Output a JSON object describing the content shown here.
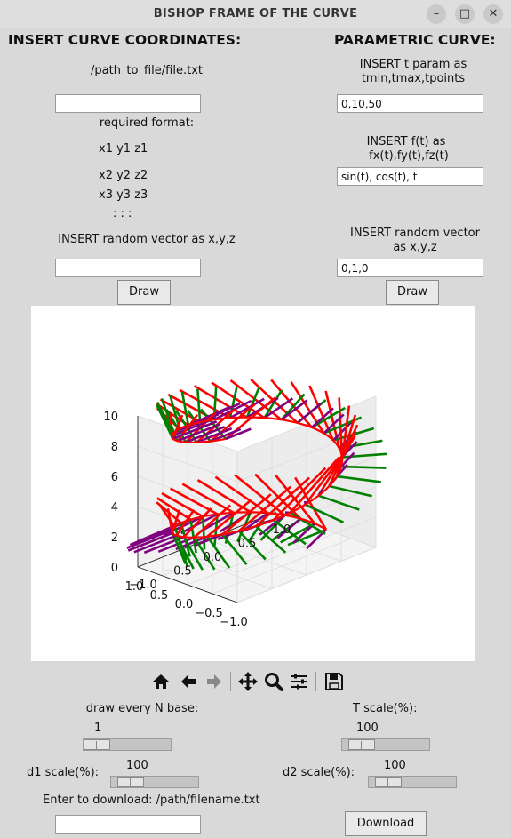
{
  "window": {
    "title": "BISHOP FRAME OF THE CURVE",
    "minimize_glyph": "–",
    "maximize_glyph": "□",
    "close_glyph": "✕"
  },
  "left_panel": {
    "header": "INSERT CURVE COORDINATES:",
    "file_path_label": "/path_to_file/file.txt",
    "file_path_value": "",
    "required_format_label": "required format:",
    "format_lines": [
      "x1  y1  z1",
      "x2  y2  z2",
      "x3  y3  z3",
      ":   :   :"
    ],
    "random_vector_label": "INSERT random vector as x,y,z",
    "random_vector_value": "",
    "draw_button": "Draw"
  },
  "right_panel": {
    "header": "PARAMETRIC CURVE:",
    "t_param_label_1": "INSERT t param as",
    "t_param_label_2": "tmin,tmax,tpoints",
    "t_param_value": "0,10,50",
    "f_label_1": "INSERT f(t) as",
    "f_label_2": "fx(t),fy(t),fz(t)",
    "f_value": "sin(t), cos(t), t",
    "random_vector_label_1": "INSERT random vector",
    "random_vector_label_2": "as x,y,z",
    "random_vector_value": "0,1,0",
    "draw_button": "Draw"
  },
  "chart_data": {
    "type": "3d-line",
    "title": "",
    "curve": {
      "x": "sin(t)",
      "y": "cos(t)",
      "z": "t",
      "t_range": [
        0,
        10
      ],
      "points": 50
    },
    "series": [
      {
        "role": "tangent",
        "color": "#ff0000"
      },
      {
        "role": "d1",
        "color": "#008000"
      },
      {
        "role": "d2",
        "color": "#800080"
      }
    ],
    "z_ticks": [
      "0",
      "2",
      "4",
      "6",
      "8",
      "10"
    ],
    "x_ticks": [
      "−1.0",
      "−0.5",
      "0.0",
      "0.5",
      "1.0"
    ],
    "y_ticks": [
      "−1.0",
      "−0.5",
      "0.0",
      "0.5",
      "1.0"
    ],
    "zlim": [
      0,
      10
    ],
    "xlim": [
      -1,
      1
    ],
    "ylim": [
      -1,
      1
    ]
  },
  "toolbar": {
    "home_icon": "⌂",
    "back_icon": "←",
    "forward_icon": "→",
    "pan_icon": "✥",
    "zoom_icon": "🔍",
    "configure_icon": "☰",
    "save_icon": "💾"
  },
  "controls": {
    "n_base_label": "draw every N base:",
    "n_base_value": "1",
    "n_base_fraction": 0.0,
    "t_scale_label": "T scale(%):",
    "t_scale_value": "100",
    "t_scale_fraction": 0.1,
    "d1_scale_label": "d1 scale(%):",
    "d1_scale_value": "100",
    "d1_scale_fraction": 0.1,
    "d2_scale_label": "d2 scale(%):",
    "d2_scale_value": "100",
    "d2_scale_fraction": 0.1,
    "download_label": "Enter to download: /path/filename.txt",
    "download_value": "",
    "download_button": "Download"
  }
}
